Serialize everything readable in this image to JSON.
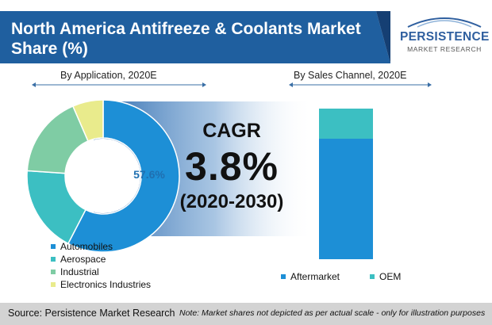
{
  "title": "North America Antifreeze & Coolants Market Share (%)",
  "logo": {
    "name": "PERSISTENCE",
    "sub": "MARKET RESEARCH"
  },
  "colors": {
    "banner": "#1f5f9f",
    "banner_dark": "#153f73",
    "automobiles": "#1d8fd6",
    "aerospace": "#3cbfc2",
    "industrial": "#7fcca4",
    "electronics": "#e9eb8c",
    "aftermarket": "#1d8fd6",
    "oem": "#3cbfc2"
  },
  "cagr": {
    "label": "CAGR",
    "value": "3.8%",
    "period": "(2020-2030)"
  },
  "footer": {
    "source": "Source: Persistence Market Research",
    "note": "Note: Market shares not depicted as per actual scale - only for illustration purposes"
  },
  "chart_data": [
    {
      "type": "pie",
      "title": "By Application, 2020E",
      "categories": [
        "Automobiles",
        "Aerospace",
        "Industrial",
        "Electronics Industries"
      ],
      "values": [
        57.6,
        18.5,
        17.4,
        6.5
      ],
      "labels": [
        "57.6%",
        "",
        "",
        ""
      ],
      "legend": "bottom-left"
    },
    {
      "type": "bar",
      "title": "By Sales Channel, 2020E",
      "categories": [
        "Aftermarket",
        "OEM"
      ],
      "values": [
        80,
        20
      ],
      "stacked": true,
      "legend": "bottom"
    }
  ]
}
